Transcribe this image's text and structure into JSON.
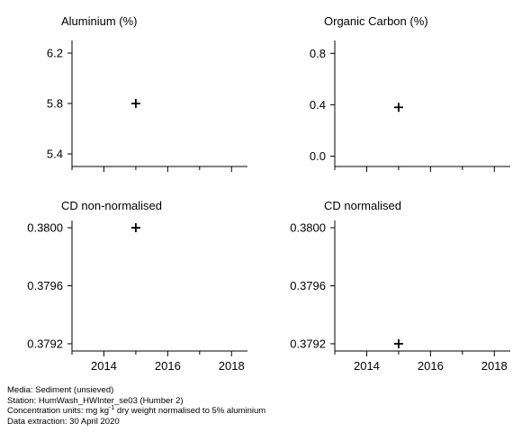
{
  "chart_data": [
    {
      "type": "scatter",
      "title": "Aluminium (%)",
      "xlim": [
        2013,
        2018.5
      ],
      "ylim": [
        5.3,
        6.3
      ],
      "xticks": [
        2014,
        2016,
        2018
      ],
      "xtick_labels": [],
      "yticks": [
        "6.2",
        "5.8",
        "5.4"
      ],
      "points": [
        {
          "x": 2015,
          "y": 5.8
        }
      ]
    },
    {
      "type": "scatter",
      "title": "Organic Carbon (%)",
      "xlim": [
        2013,
        2018.5
      ],
      "ylim": [
        -0.08,
        0.9
      ],
      "xticks": [
        2014,
        2016,
        2018
      ],
      "xtick_labels": [],
      "yticks": [
        "0.8",
        "0.4",
        "0.0"
      ],
      "points": [
        {
          "x": 2015,
          "y": 0.38
        }
      ]
    },
    {
      "type": "scatter",
      "title": "CD non-normalised",
      "xlim": [
        2013,
        2018.5
      ],
      "ylim": [
        0.37915,
        0.38005
      ],
      "xticks": [
        2014,
        2016,
        2018
      ],
      "xtick_labels": [
        "2014",
        "2016",
        "2018"
      ],
      "yticks": [
        "0.3800",
        "0.3796",
        "0.3792"
      ],
      "points": [
        {
          "x": 2015,
          "y": 0.38
        }
      ]
    },
    {
      "type": "scatter",
      "title": "CD normalised",
      "xlim": [
        2013,
        2018.5
      ],
      "ylim": [
        0.37915,
        0.38005
      ],
      "xticks": [
        2014,
        2016,
        2018
      ],
      "xtick_labels": [
        "2014",
        "2016",
        "2018"
      ],
      "yticks": [
        "0.3800",
        "0.3796",
        "0.3792"
      ],
      "points": [
        {
          "x": 2015,
          "y": 0.3792
        }
      ]
    }
  ],
  "footer": {
    "media": "Media: Sediment (unsieved)",
    "station": "Station: HumWash_HWInter_se03 (Humber 2)",
    "units_prefix": "Concentration units:  mg kg",
    "units_sup": "-1",
    "units_suffix": " dry weight normalised to 5% aluminium",
    "extraction": "Data extraction: 30 April 2020"
  }
}
